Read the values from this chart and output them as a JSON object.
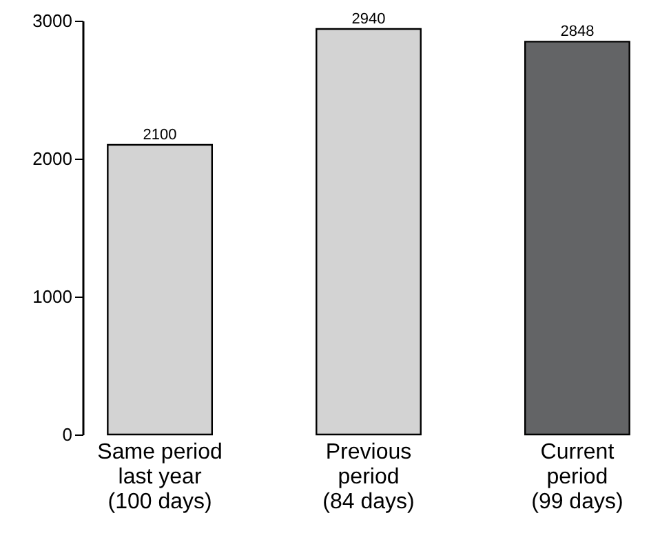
{
  "chart_data": {
    "type": "bar",
    "categories": [
      "Same period\nlast year\n(100 days)",
      "Previous\nperiod\n(84 days)",
      "Current\nperiod\n(99 days)"
    ],
    "values": [
      2100,
      2940,
      2848
    ],
    "colors": [
      "#d3d3d3",
      "#d3d3d3",
      "#636466"
    ],
    "ylim": [
      0,
      3000
    ],
    "yticks": [
      0,
      1000,
      2000,
      3000
    ],
    "data_labels": true
  }
}
